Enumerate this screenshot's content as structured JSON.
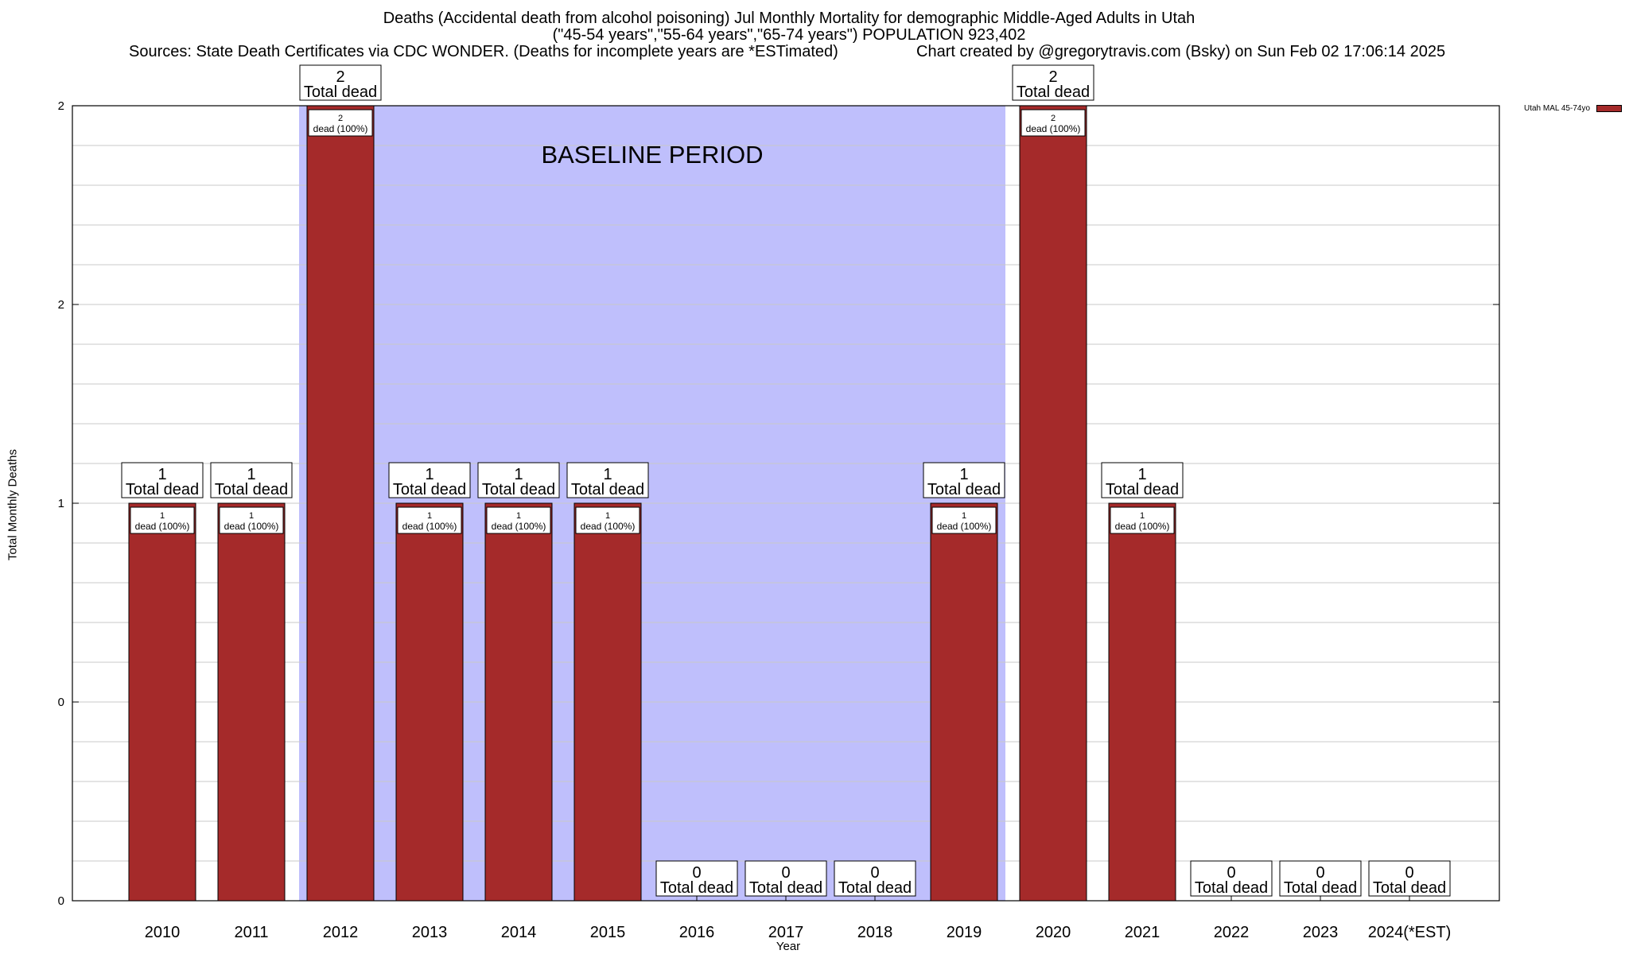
{
  "chart_data": {
    "type": "bar",
    "title_lines": [
      "Deaths (Accidental death from alcohol poisoning) Jul Monthly Mortality for demographic Middle-Aged Adults in Utah",
      "(\"45-54 years\",\"55-64 years\",\"65-74 years\") POPULATION 923,402"
    ],
    "sources_text": "Sources: State Death Certificates via CDC WONDER. (Deaths for incomplete years are *ESTimated)",
    "credit_text": "Chart created by @gregorytravis.com (Bsky) on Sun Feb 02 17:06:14 2025",
    "xlabel": "Year",
    "ylabel": "Total Monthly Deaths",
    "ylim": [
      0,
      2
    ],
    "y_tick_labels": [
      "0",
      "0",
      "1",
      "2",
      "2"
    ],
    "y_tick_values": [
      0,
      0.5,
      1,
      1.5,
      2
    ],
    "grid": true,
    "baseline_label": "BASELINE PERIOD",
    "baseline_range": [
      "2012",
      "2019"
    ],
    "legend_position": "top-right",
    "categories": [
      "2010",
      "2011",
      "2012",
      "2013",
      "2014",
      "2015",
      "2016",
      "2017",
      "2018",
      "2019",
      "2020",
      "2021",
      "2022",
      "2023",
      "2024(*EST)"
    ],
    "series": [
      {
        "name": "Utah MAL 45-74yo",
        "color": "#a52a2a",
        "values": [
          1,
          1,
          2,
          1,
          1,
          1,
          0,
          0,
          0,
          1,
          2,
          1,
          0,
          0,
          0
        ]
      }
    ],
    "total_label_suffix": "Total dead",
    "segment_label_suffix": "dead (100%)",
    "colors": {
      "bar": "#a52a2a",
      "baseline": "#bfbffc",
      "grid": "#c8c8c8"
    }
  }
}
